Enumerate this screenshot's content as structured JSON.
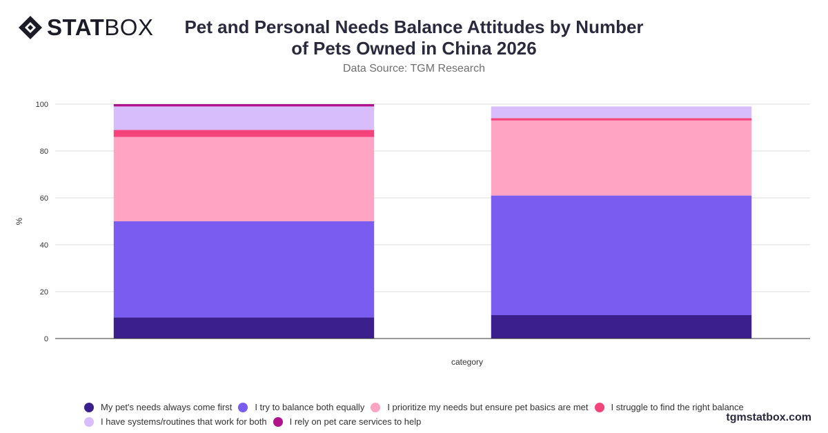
{
  "brand": {
    "logo_bold": "STAT",
    "logo_light": "BOX",
    "watermark": "tgmstatbox.com"
  },
  "header": {
    "title_line1": "Pet and Personal Needs Balance Attitudes by Number",
    "title_line2": "of Pets Owned in China 2026",
    "subtitle": "Data Source: TGM Research"
  },
  "chart_data": {
    "type": "bar",
    "stacked": true,
    "categories": [
      "",
      ""
    ],
    "xlabel": "category",
    "ylabel": "%",
    "ylim": [
      0,
      100
    ],
    "yticks": [
      0,
      20,
      40,
      60,
      80,
      100
    ],
    "grid": true,
    "legend_position": "bottom",
    "series": [
      {
        "name": "My pet's needs always come first",
        "color": "#3b1f8c",
        "values": [
          9,
          10
        ]
      },
      {
        "name": "I try to balance both equally",
        "color": "#7b5cf0",
        "values": [
          41,
          51
        ]
      },
      {
        "name": "I prioritize my needs but ensure pet basics are met",
        "color": "#ffa4c3",
        "values": [
          36,
          32
        ]
      },
      {
        "name": "I struggle to find the right balance",
        "color": "#f5447c",
        "values": [
          3,
          1
        ]
      },
      {
        "name": "I have systems/routines that work for both",
        "color": "#d7bdfb",
        "values": [
          10,
          5
        ]
      },
      {
        "name": "I rely on pet care services to help",
        "color": "#b0128b",
        "values": [
          1,
          0
        ]
      }
    ]
  }
}
